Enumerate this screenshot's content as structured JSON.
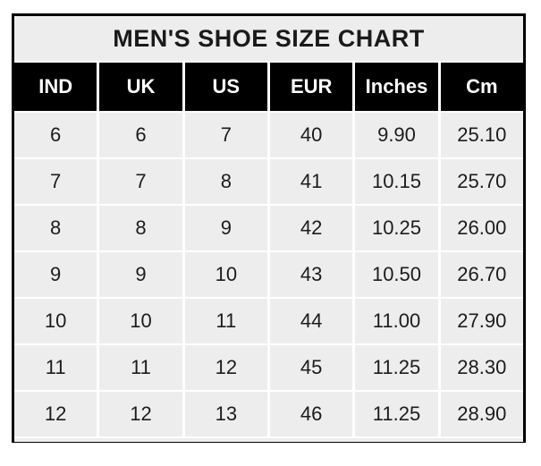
{
  "title": "MEN'S SHOE SIZE CHART",
  "colors": {
    "page_bg": "#ffffff",
    "outer_border": "#000000",
    "title_bg": "#eeeded",
    "title_text": "#1a1a1a",
    "header_bg": "#000000",
    "header_text": "#ffffff",
    "cell_bg": "#eeeded",
    "cell_text": "#1c1c1c",
    "gridline": "#ffffff"
  },
  "chart_data": {
    "type": "table",
    "title": "MEN'S SHOE SIZE CHART",
    "columns": [
      "IND",
      "UK",
      "US",
      "EUR",
      "Inches",
      "Cm"
    ],
    "rows": [
      [
        "6",
        "6",
        "7",
        "40",
        "9.90",
        "25.10"
      ],
      [
        "7",
        "7",
        "8",
        "41",
        "10.15",
        "25.70"
      ],
      [
        "8",
        "8",
        "9",
        "42",
        "10.25",
        "26.00"
      ],
      [
        "9",
        "9",
        "10",
        "43",
        "10.50",
        "26.70"
      ],
      [
        "10",
        "10",
        "11",
        "44",
        "11.00",
        "27.90"
      ],
      [
        "11",
        "11",
        "12",
        "45",
        "11.25",
        "28.30"
      ],
      [
        "12",
        "12",
        "13",
        "46",
        "11.25",
        "28.90"
      ]
    ]
  }
}
